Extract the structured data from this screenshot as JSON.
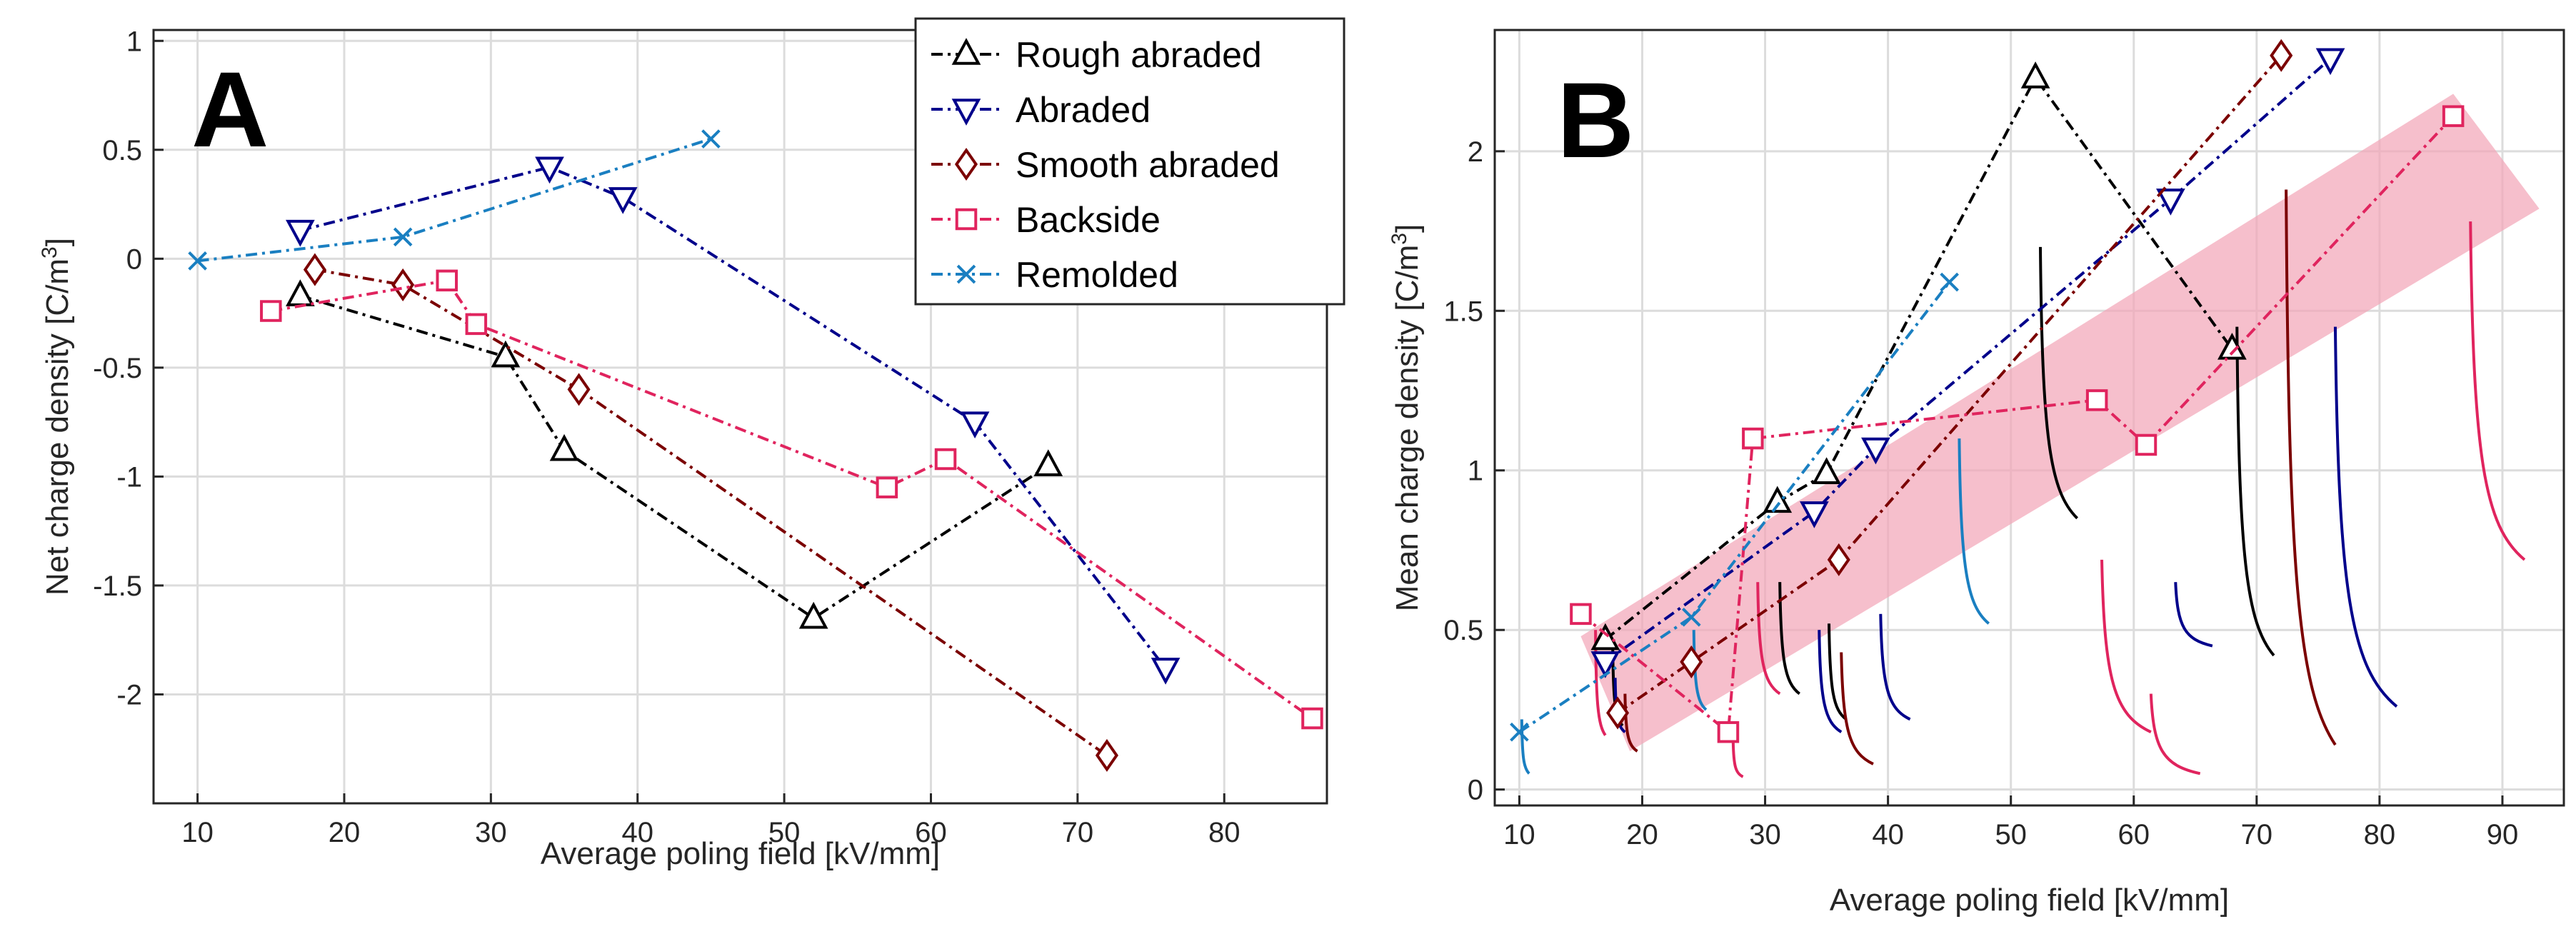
{
  "figure": {
    "panel_a_letter": "A",
    "panel_b_letter": "B"
  },
  "chart_data": [
    {
      "id": "A",
      "type": "line",
      "title": "",
      "xlabel": "Average poling field [kV/mm]",
      "ylabel": "Net charge density [C/m",
      "ylabel_sup": "3",
      "ylabel_close": "]",
      "xlim": [
        7,
        87
      ],
      "ylim": [
        -2.5,
        1.05
      ],
      "xticks": [
        10,
        20,
        30,
        40,
        50,
        60,
        70,
        80
      ],
      "yticks": [
        -2,
        -1.5,
        -1,
        -0.5,
        0,
        0.5,
        1
      ],
      "ytick_labels": [
        "-2",
        "-1.5",
        "-1",
        "-0.5",
        "0",
        "0.5",
        "1"
      ],
      "grid": true,
      "series": [
        {
          "name": "Rough abraded",
          "color": "#000000",
          "marker": "triangle-up",
          "points": [
            [
              17,
              -0.17
            ],
            [
              31,
              -0.45
            ],
            [
              35,
              -0.88
            ],
            [
              52,
              -1.65
            ],
            [
              68,
              -0.95
            ]
          ]
        },
        {
          "name": "Abraded",
          "color": "#00008b",
          "marker": "triangle-down",
          "points": [
            [
              17,
              0.13
            ],
            [
              34,
              0.42
            ],
            [
              39,
              0.28
            ],
            [
              63,
              -0.75
            ],
            [
              76,
              -1.88
            ]
          ]
        },
        {
          "name": "Smooth abraded",
          "color": "#7b0000",
          "marker": "diamond",
          "points": [
            [
              18,
              -0.05
            ],
            [
              24,
              -0.12
            ],
            [
              36,
              -0.6
            ],
            [
              72,
              -2.28
            ]
          ]
        },
        {
          "name": "Backside",
          "color": "#e0245e",
          "marker": "square",
          "points": [
            [
              15,
              -0.24
            ],
            [
              27,
              -0.1
            ],
            [
              29,
              -0.3
            ],
            [
              57,
              -1.05
            ],
            [
              61,
              -0.92
            ],
            [
              86,
              -2.11
            ]
          ]
        },
        {
          "name": "Remolded",
          "color": "#1a7fc1",
          "marker": "x",
          "points": [
            [
              10,
              -0.01
            ],
            [
              24,
              0.1
            ],
            [
              45,
              0.55
            ]
          ]
        }
      ],
      "legend": {
        "position": "top-right"
      }
    },
    {
      "id": "B",
      "type": "line",
      "title": "",
      "xlabel": "Average poling field [kV/mm]",
      "ylabel": "Mean charge density [C/m",
      "ylabel_sup": "3",
      "ylabel_close": "]",
      "xlim": [
        8,
        95
      ],
      "ylim": [
        -0.05,
        2.38
      ],
      "xticks": [
        10,
        20,
        30,
        40,
        50,
        60,
        70,
        80,
        90
      ],
      "yticks": [
        0,
        0.5,
        1,
        1.5,
        2
      ],
      "ytick_labels": [
        "0",
        "0.5",
        "1",
        "1.5",
        "2"
      ],
      "grid": true,
      "band": {
        "color": "#f2a6b8",
        "polygon": [
          [
            15,
            0.48
          ],
          [
            86,
            2.18
          ],
          [
            93,
            1.82
          ],
          [
            19,
            0.12
          ]
        ]
      },
      "series": [
        {
          "name": "Rough abraded",
          "color": "#000000",
          "marker": "triangle-up",
          "points": [
            [
              17,
              0.47
            ],
            [
              31,
              0.9
            ],
            [
              35,
              0.99
            ],
            [
              52,
              2.23
            ],
            [
              68,
              1.38
            ]
          ]
        },
        {
          "name": "Abraded",
          "color": "#00008b",
          "marker": "triangle-down",
          "points": [
            [
              17,
              0.4
            ],
            [
              34,
              0.87
            ],
            [
              39,
              1.07
            ],
            [
              63,
              1.85
            ],
            [
              76,
              2.29
            ]
          ]
        },
        {
          "name": "Smooth abraded",
          "color": "#7b0000",
          "marker": "diamond",
          "points": [
            [
              18,
              0.24
            ],
            [
              24,
              0.4
            ],
            [
              36,
              0.72
            ],
            [
              72,
              2.3
            ]
          ]
        },
        {
          "name": "Backside",
          "color": "#e0245e",
          "marker": "square",
          "points": [
            [
              15,
              0.55
            ],
            [
              27,
              0.18
            ],
            [
              29,
              1.1
            ],
            [
              57,
              1.22
            ],
            [
              61,
              1.08
            ],
            [
              86,
              2.11
            ]
          ]
        },
        {
          "name": "Remolded",
          "color": "#1a7fc1",
          "marker": "x",
          "points": [
            [
              10,
              0.18
            ],
            [
              24,
              0.54
            ],
            [
              45,
              1.59
            ]
          ]
        }
      ],
      "decay_traces": [
        {
          "color": "#1a7fc1",
          "start": [
            10.2,
            0.22
          ],
          "end": [
            10.8,
            0.05
          ]
        },
        {
          "color": "#e0245e",
          "start": [
            16.2,
            0.5
          ],
          "end": [
            17.0,
            0.17
          ]
        },
        {
          "color": "#000000",
          "start": [
            17.6,
            0.45
          ],
          "end": [
            18.4,
            0.2
          ]
        },
        {
          "color": "#00008b",
          "start": [
            17.8,
            0.35
          ],
          "end": [
            18.6,
            0.18
          ]
        },
        {
          "color": "#7b0000",
          "start": [
            18.6,
            0.3
          ],
          "end": [
            19.6,
            0.12
          ]
        },
        {
          "color": "#1a7fc1",
          "start": [
            24.2,
            0.5
          ],
          "end": [
            25.2,
            0.25
          ]
        },
        {
          "color": "#e0245e",
          "start": [
            27.4,
            0.15
          ],
          "end": [
            28.2,
            0.04
          ]
        },
        {
          "color": "#e0245e",
          "start": [
            29.4,
            0.65
          ],
          "end": [
            31.2,
            0.3
          ]
        },
        {
          "color": "#000000",
          "start": [
            31.2,
            0.65
          ],
          "end": [
            32.8,
            0.3
          ]
        },
        {
          "color": "#000000",
          "start": [
            35.2,
            0.52
          ],
          "end": [
            36.6,
            0.22
          ]
        },
        {
          "color": "#00008b",
          "start": [
            34.4,
            0.5
          ],
          "end": [
            36.2,
            0.18
          ]
        },
        {
          "color": "#7b0000",
          "start": [
            36.2,
            0.43
          ],
          "end": [
            38.8,
            0.08
          ]
        },
        {
          "color": "#00008b",
          "start": [
            39.4,
            0.55
          ],
          "end": [
            41.8,
            0.22
          ]
        },
        {
          "color": "#1a7fc1",
          "start": [
            45.8,
            1.1
          ],
          "end": [
            48.2,
            0.52
          ]
        },
        {
          "color": "#000000",
          "start": [
            52.4,
            1.7
          ],
          "end": [
            55.4,
            0.85
          ]
        },
        {
          "color": "#e0245e",
          "start": [
            57.4,
            0.72
          ],
          "end": [
            61.4,
            0.18
          ]
        },
        {
          "color": "#e0245e",
          "start": [
            61.4,
            0.3
          ],
          "end": [
            65.4,
            0.05
          ]
        },
        {
          "color": "#00008b",
          "start": [
            63.4,
            0.65
          ],
          "end": [
            66.4,
            0.45
          ]
        },
        {
          "color": "#000000",
          "start": [
            68.4,
            1.45
          ],
          "end": [
            71.4,
            0.42
          ]
        },
        {
          "color": "#7b0000",
          "start": [
            72.4,
            1.88
          ],
          "end": [
            76.4,
            0.14
          ]
        },
        {
          "color": "#00008b",
          "start": [
            76.4,
            1.45
          ],
          "end": [
            81.4,
            0.26
          ]
        },
        {
          "color": "#e0245e",
          "start": [
            87.4,
            1.78
          ],
          "end": [
            91.8,
            0.72
          ]
        }
      ]
    }
  ]
}
